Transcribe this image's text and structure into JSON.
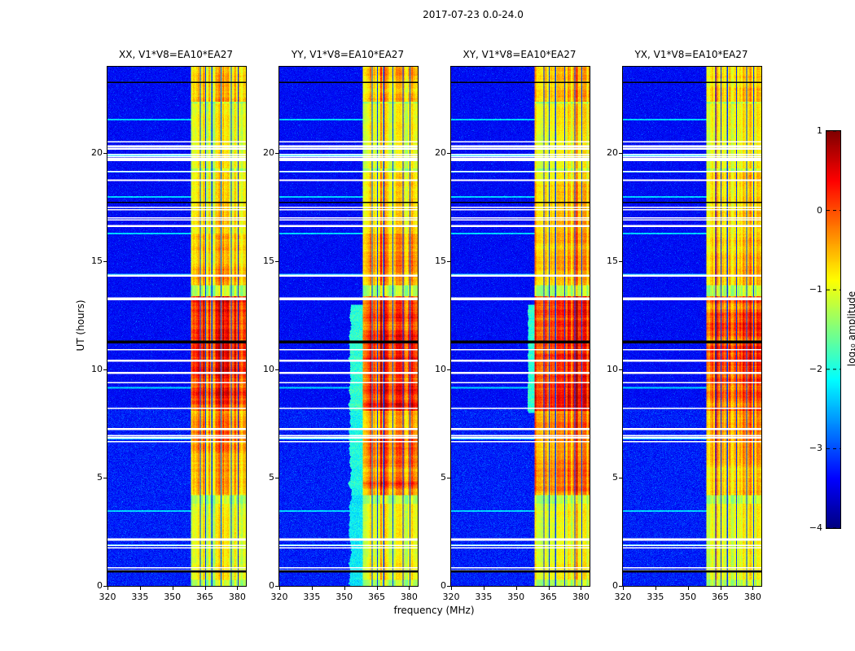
{
  "chart_data": {
    "type": "heatmap",
    "title": "2017-07-23 0.0-24.0",
    "xlabel": "frequency (MHz)",
    "ylabel": "UT (hours)",
    "x_range": [
      320,
      384
    ],
    "y_range": [
      0,
      24
    ],
    "x_ticks": [
      "320",
      "335",
      "350",
      "365",
      "380"
    ],
    "y_ticks": [
      "0",
      "5",
      "10",
      "15",
      "20"
    ],
    "grid": false,
    "colorbar": {
      "label": "log₁₀ amplitude",
      "ticks": [
        "1",
        "0",
        "−1",
        "−2",
        "−3",
        "−4"
      ],
      "tick_values": [
        1,
        0,
        -1,
        -2,
        -3,
        -4
      ],
      "range": [
        -4,
        1
      ],
      "colormap": "jet"
    },
    "panels": [
      {
        "title": "XX, V1*V8=EA10*EA27",
        "pol": "XX",
        "seed": 101,
        "hot_times": [
          [
            0.3,
            1.0,
            0.35
          ],
          [
            1.0,
            3.8,
            0.25
          ],
          [
            4.2,
            6.7,
            0.75
          ],
          [
            6.7,
            8.1,
            0.9
          ],
          [
            8.1,
            13.4,
            1.3
          ],
          [
            13.9,
            16.3,
            0.7
          ],
          [
            16.3,
            19.2,
            0.5
          ],
          [
            19.3,
            22.3,
            0.3
          ],
          [
            22.4,
            24,
            0.6
          ]
        ],
        "spill": [
          0,
          0,
          0
        ]
      },
      {
        "title": "YY, V1*V8=EA10*EA27",
        "pol": "YY",
        "seed": 202,
        "hot_times": [
          [
            0.3,
            1.0,
            0.35
          ],
          [
            1.0,
            3.8,
            0.3
          ],
          [
            4.2,
            6.8,
            1.05
          ],
          [
            6.8,
            8.1,
            0.8
          ],
          [
            8.1,
            13.4,
            1.35
          ],
          [
            13.9,
            16.3,
            0.8
          ],
          [
            16.3,
            19.2,
            0.5
          ],
          [
            19.3,
            22.3,
            0.3
          ],
          [
            22.4,
            24,
            0.65
          ]
        ],
        "spill": [
          0,
          13,
          6
        ]
      },
      {
        "title": "XY, V1*V8=EA10*EA27",
        "pol": "XY",
        "seed": 303,
        "hot_times": [
          [
            0.3,
            1.0,
            0.35
          ],
          [
            1.0,
            3.8,
            0.3
          ],
          [
            4.2,
            6.8,
            0.9
          ],
          [
            6.8,
            8.1,
            0.85
          ],
          [
            8.1,
            13.4,
            1.3
          ],
          [
            13.9,
            16.3,
            0.7
          ],
          [
            16.3,
            19.2,
            0.55
          ],
          [
            19.3,
            22.3,
            0.35
          ],
          [
            22.4,
            24,
            0.65
          ]
        ],
        "spill": [
          8,
          13,
          3
        ]
      },
      {
        "title": "YX, V1*V8=EA10*EA27",
        "pol": "YX",
        "seed": 404,
        "hot_times": [
          [
            0.3,
            1.0,
            0.3
          ],
          [
            1.0,
            3.8,
            0.25
          ],
          [
            4.2,
            6.7,
            0.6
          ],
          [
            6.7,
            8.1,
            0.7
          ],
          [
            8.1,
            13.4,
            1.15
          ],
          [
            13.9,
            16.3,
            0.6
          ],
          [
            16.3,
            19.2,
            0.45
          ],
          [
            19.3,
            22.3,
            0.28
          ],
          [
            22.4,
            24,
            0.55
          ]
        ],
        "spill": [
          0,
          0,
          0
        ]
      }
    ],
    "band": {
      "f_start": 358.5,
      "f_end": 384,
      "base": -1.35,
      "dead_channels_mhz": [
        362.8,
        365.3,
        368.2,
        372.4,
        377.1,
        380.3
      ]
    },
    "gaps": {
      "white_seed": 9001,
      "white_clusters": 14,
      "black_rows": [
        [
          0.72,
          2
        ],
        [
          11.35,
          3
        ],
        [
          17.75,
          1
        ],
        [
          23.3,
          1
        ]
      ]
    }
  }
}
